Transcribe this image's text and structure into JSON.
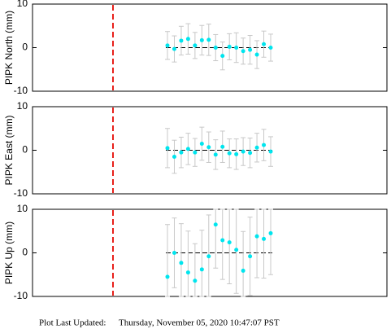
{
  "chart_data": [
    {
      "type": "scatter",
      "y_label": "PIPK North (mm)",
      "categories": [
        null,
        null,
        null,
        null,
        null,
        null,
        null,
        null,
        null,
        null,
        null,
        null,
        null,
        null,
        null,
        null
      ],
      "series": [
        {
          "color": "#00e5ee",
          "error_color": "#c8c8c8",
          "values": [
            0.5,
            -0.3,
            1.6,
            2.0,
            0.5,
            1.7,
            1.8,
            0.0,
            -1.9,
            0.2,
            0.0,
            -0.8,
            -0.5,
            -1.6,
            0.8,
            0.0
          ],
          "error": [
            3.2,
            3.0,
            3.3,
            3.5,
            3.0,
            3.4,
            3.6,
            3.0,
            3.2,
            3.0,
            3.4,
            3.0,
            3.3,
            3.2,
            3.0,
            3.1
          ]
        }
      ],
      "ylim": [
        -10,
        10
      ],
      "yticks": [
        -10,
        0,
        10
      ]
    },
    {
      "type": "scatter",
      "y_label": "PIPK East (mm)",
      "categories": [
        null,
        null,
        null,
        null,
        null,
        null,
        null,
        null,
        null,
        null,
        null,
        null,
        null,
        null,
        null,
        null
      ],
      "series": [
        {
          "color": "#00e5ee",
          "error_color": "#c8c8c8",
          "values": [
            0.5,
            -1.5,
            -0.5,
            0.3,
            -0.5,
            1.5,
            0.7,
            -1.0,
            0.8,
            -0.7,
            -0.9,
            -0.3,
            -0.6,
            0.6,
            1.2,
            -0.3
          ],
          "error": [
            4.5,
            3.8,
            3.5,
            3.6,
            3.2,
            3.8,
            3.5,
            3.4,
            3.6,
            3.3,
            3.5,
            3.2,
            3.4,
            3.3,
            3.6,
            3.4
          ]
        }
      ],
      "ylim": [
        -10,
        10
      ],
      "yticks": [
        -10,
        0,
        10
      ]
    },
    {
      "type": "scatter",
      "y_label": "PIPK Up (mm)",
      "categories": [
        null,
        null,
        null,
        null,
        null,
        null,
        null,
        null,
        null,
        null,
        null,
        null,
        null,
        null,
        null,
        null
      ],
      "series": [
        {
          "color": "#00e5ee",
          "error_color": "#c8c8c8",
          "values": [
            -5.5,
            0.0,
            -2.3,
            -4.5,
            -6.4,
            -3.8,
            -0.8,
            6.5,
            2.9,
            2.4,
            0.7,
            -4.1,
            -0.8,
            3.8,
            3.2,
            4.5
          ],
          "error": [
            12.0,
            8.0,
            9.0,
            9.5,
            8.5,
            9.0,
            9.5,
            10.0,
            9.0,
            9.5,
            10.0,
            9.0,
            9.0,
            9.5,
            9.0,
            9.5
          ]
        }
      ],
      "ylim": [
        -10,
        10
      ],
      "yticks": [
        -10,
        0,
        10
      ]
    }
  ],
  "footer": {
    "label": "Plot Last Updated:",
    "timestamp": "Thursday, November 05, 2020 10:47:07 PST"
  }
}
